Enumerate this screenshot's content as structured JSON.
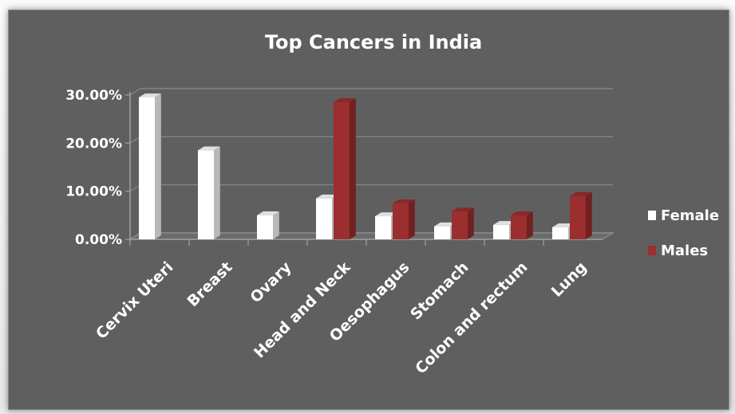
{
  "chart_data": {
    "type": "bar",
    "title": "Top Cancers in India",
    "categories": [
      "Cervix Uteri",
      "Breast",
      "Ovary",
      "Head and Neck",
      "Oesophagus",
      "Stomach",
      "Colon and rectum",
      "Lung"
    ],
    "series": [
      {
        "name": "Female",
        "values": [
          0.295,
          0.185,
          0.05,
          0.085,
          0.048,
          0.027,
          0.03,
          0.025
        ],
        "color": "#ffffff"
      },
      {
        "name": "Males",
        "values": [
          null,
          null,
          null,
          0.285,
          0.075,
          0.058,
          0.05,
          0.09
        ],
        "color": "#9b2e2e"
      }
    ],
    "ylim": [
      0,
      0.3
    ],
    "yticks": [
      "0.00%",
      "10.00%",
      "20.00%",
      "30.00%"
    ],
    "grid": true,
    "legend": "right",
    "is3d": true
  }
}
